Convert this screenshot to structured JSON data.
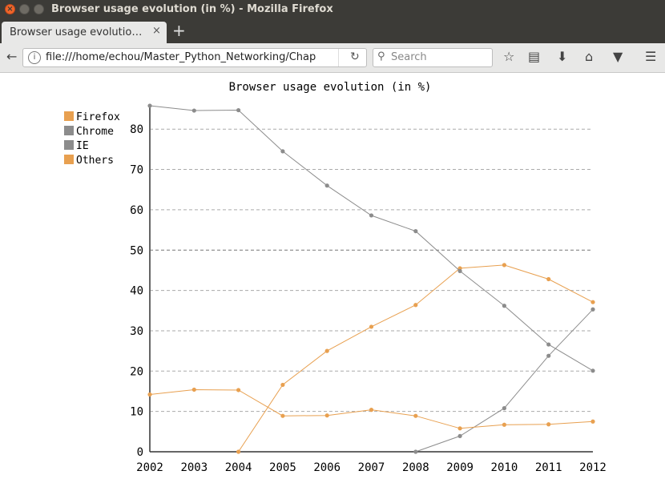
{
  "window": {
    "title": "Browser usage evolution (in %) - Mozilla Firefox"
  },
  "tab": {
    "label": "Browser usage evolutio…",
    "close": "×",
    "new": "+"
  },
  "nav": {
    "url": "file:///home/echou/Master_Python_Networking/Chap",
    "search_placeholder": "Search",
    "icons": [
      "back-icon",
      "info-icon",
      "reload-icon",
      "search-icon",
      "star-icon",
      "reading-list-icon",
      "download-icon",
      "home-icon",
      "pocket-icon",
      "menu-icon"
    ]
  },
  "colors": {
    "firefox": "#e8a050",
    "chrome": "#8c8c8c",
    "ie": "#8c8c8c",
    "others": "#e8a050",
    "grid": "#aaaaaa"
  },
  "chart_data": {
    "type": "line",
    "title": "Browser usage evolution (in %)",
    "x": [
      "2002",
      "2003",
      "2004",
      "2005",
      "2006",
      "2007",
      "2008",
      "2009",
      "2010",
      "2011",
      "2012"
    ],
    "y_ticks": [
      "0",
      "10",
      "20",
      "30",
      "40",
      "50",
      "60",
      "70",
      "80"
    ],
    "ylim": [
      0,
      86
    ],
    "grid": true,
    "legend_position": "top-left",
    "series": [
      {
        "name": "Firefox",
        "values": [
          null,
          null,
          0,
          16.6,
          25,
          31,
          36.4,
          45.5,
          46.3,
          42.8,
          37.1
        ]
      },
      {
        "name": "Chrome",
        "values": [
          null,
          null,
          null,
          null,
          null,
          null,
          0,
          3.9,
          10.8,
          23.8,
          35.3
        ]
      },
      {
        "name": "IE",
        "values": [
          85.8,
          84.6,
          84.7,
          74.5,
          66,
          58.6,
          54.7,
          44.8,
          36.2,
          26.6,
          20.1
        ]
      },
      {
        "name": "Others",
        "values": [
          14.2,
          15.4,
          15.3,
          8.9,
          9,
          10.4,
          8.9,
          5.8,
          6.7,
          6.8,
          7.5
        ]
      }
    ]
  }
}
